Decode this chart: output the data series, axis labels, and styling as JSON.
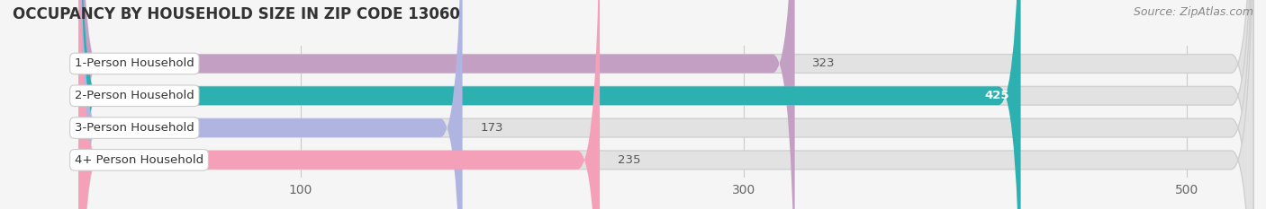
{
  "title": "OCCUPANCY BY HOUSEHOLD SIZE IN ZIP CODE 13060",
  "source": "Source: ZipAtlas.com",
  "categories": [
    "1-Person Household",
    "2-Person Household",
    "3-Person Household",
    "4+ Person Household"
  ],
  "values": [
    323,
    425,
    173,
    235
  ],
  "bar_colors": [
    "#c49fc4",
    "#2db0b0",
    "#b0b4e0",
    "#f4a0b8"
  ],
  "label_colors": [
    "#555555",
    "#ffffff",
    "#555555",
    "#555555"
  ],
  "xlim": [
    -30,
    530
  ],
  "xticks": [
    100,
    300,
    500
  ],
  "bar_height": 0.58,
  "background_color": "#f5f5f5",
  "bar_bg_color": "#e2e2e2",
  "title_fontsize": 12,
  "source_fontsize": 9,
  "tick_fontsize": 10,
  "value_fontsize": 9.5,
  "label_fontsize": 9.5
}
